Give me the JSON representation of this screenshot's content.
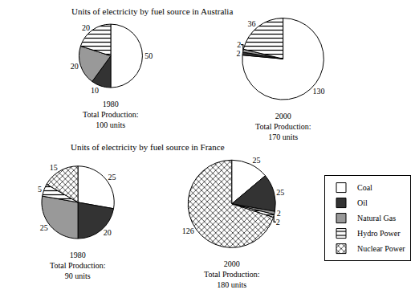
{
  "chart_data": [
    {
      "type": "pie",
      "title": "Units of electricity by fuel source in Australia",
      "subtitle": "1980",
      "annotations": [
        "Total Production:",
        "100 units"
      ],
      "data_labels": true,
      "series": [
        {
          "name": "Coal",
          "color": "#ffffff",
          "marker": "solid",
          "values": [
            50
          ]
        },
        {
          "name": "Oil",
          "color": "#333333",
          "marker": "solid",
          "values": [
            10
          ]
        },
        {
          "name": "Natural Gas",
          "color": "#999999",
          "marker": "solid",
          "values": [
            20
          ]
        },
        {
          "name": "Hydro Power",
          "color": "#ffffff",
          "marker": "stripes",
          "values": [
            20
          ]
        }
      ]
    },
    {
      "type": "pie",
      "subtitle": "2000",
      "annotations": [
        "Total Production:",
        "170 units"
      ],
      "data_labels": true,
      "series": [
        {
          "name": "Coal",
          "color": "#ffffff",
          "marker": "solid",
          "values": [
            130
          ]
        },
        {
          "name": "Oil",
          "color": "#333333",
          "marker": "solid",
          "values": [
            2
          ]
        },
        {
          "name": "Natural Gas",
          "color": "#999999",
          "marker": "solid",
          "values": [
            2
          ]
        },
        {
          "name": "Hydro Power",
          "color": "#ffffff",
          "marker": "stripes",
          "values": [
            36
          ]
        }
      ]
    },
    {
      "type": "pie",
      "title": "Units of electricity by fuel source in France",
      "subtitle": "1980",
      "annotations": [
        "Total Production:",
        "90 units"
      ],
      "data_labels": true,
      "series": [
        {
          "name": "Coal",
          "color": "#ffffff",
          "marker": "solid",
          "values": [
            25
          ]
        },
        {
          "name": "Oil",
          "color": "#333333",
          "marker": "solid",
          "values": [
            20
          ]
        },
        {
          "name": "Natural Gas",
          "color": "#999999",
          "marker": "solid",
          "values": [
            25
          ]
        },
        {
          "name": "Hydro Power",
          "color": "#ffffff",
          "marker": "stripes",
          "values": [
            5
          ]
        },
        {
          "name": "Nuclear Power",
          "color": "#bbbbbb",
          "marker": "crosshatch",
          "values": [
            15
          ]
        }
      ]
    },
    {
      "type": "pie",
      "subtitle": "2000",
      "annotations": [
        "Total Production:",
        "180 units"
      ],
      "data_labels": true,
      "legend": "right",
      "series": [
        {
          "name": "Coal",
          "color": "#ffffff",
          "marker": "solid",
          "values": [
            25
          ]
        },
        {
          "name": "Oil",
          "color": "#333333",
          "marker": "solid",
          "values": [
            25
          ]
        },
        {
          "name": "Natural Gas",
          "color": "#999999",
          "marker": "solid",
          "values": [
            2
          ]
        },
        {
          "name": "Hydro Power",
          "color": "#ffffff",
          "marker": "stripes",
          "values": [
            2
          ]
        },
        {
          "name": "Nuclear Power",
          "color": "#bbbbbb",
          "marker": "crosshatch",
          "values": [
            126
          ]
        }
      ]
    }
  ]
}
